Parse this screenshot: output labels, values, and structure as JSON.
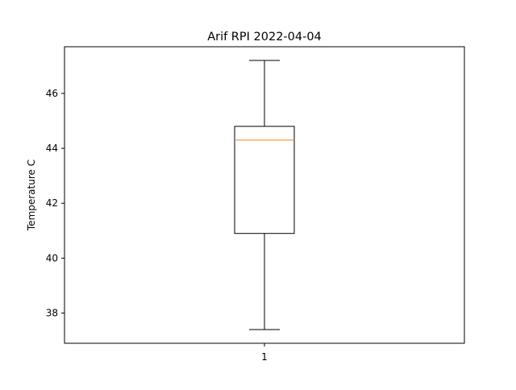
{
  "chart_data": {
    "type": "box",
    "title": "Arif RPI 2022-04-04",
    "xlabel": "",
    "ylabel": "Temperature C",
    "categories": [
      "1"
    ],
    "boxes": [
      {
        "label": "1",
        "whisker_low": 37.4,
        "q1": 40.9,
        "median": 44.3,
        "q3": 44.8,
        "whisker_high": 47.2
      }
    ],
    "ylim": [
      36.9,
      47.7
    ],
    "yticks": [
      38,
      40,
      42,
      44,
      46
    ],
    "ytick_labels": [
      "38",
      "40",
      "42",
      "44",
      "46"
    ],
    "grid": false,
    "colors": {
      "box": "#000000",
      "median": "#ff7f0e",
      "whisker": "#000000"
    }
  }
}
